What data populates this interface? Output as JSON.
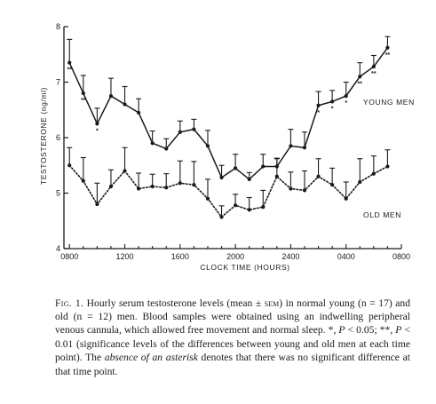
{
  "chart_data": {
    "type": "line",
    "title": "",
    "xlabel": "CLOCK TIME (HOURS)",
    "ylabel": "TESTOSTERONE (ng/ml)",
    "ylim": [
      4,
      8
    ],
    "yticks": [
      4,
      5,
      6,
      7,
      8
    ],
    "xtick_labels": [
      "0800",
      "1200",
      "1600",
      "2000",
      "2400",
      "0400",
      "0800"
    ],
    "grid": false,
    "x_hours": [
      8,
      9,
      10,
      11,
      12,
      13,
      14,
      15,
      16,
      17,
      18,
      19,
      20,
      21,
      22,
      23,
      24,
      25,
      26,
      27,
      28,
      29,
      30,
      31
    ],
    "series": [
      {
        "name": "YOUNG MEN",
        "line_style": "solid",
        "values": [
          7.35,
          6.8,
          6.25,
          6.75,
          6.6,
          6.45,
          5.9,
          5.8,
          6.1,
          6.15,
          5.85,
          5.28,
          5.45,
          5.25,
          5.48,
          5.48,
          5.85,
          5.82,
          6.58,
          6.65,
          6.75,
          7.1,
          7.28,
          7.62
        ],
        "sem": [
          0.42,
          0.32,
          0.28,
          0.32,
          0.32,
          0.25,
          0.22,
          0.18,
          0.2,
          0.18,
          0.28,
          0.22,
          0.25,
          0.12,
          0.22,
          0.15,
          0.3,
          0.28,
          0.25,
          0.2,
          0.25,
          0.25,
          0.2,
          0.2
        ],
        "significance": [
          "**",
          "**",
          "*",
          "",
          "",
          "",
          "",
          "",
          "",
          "",
          "",
          "",
          "",
          "",
          "",
          "",
          "",
          "",
          "*",
          "*",
          "*",
          "**",
          "**",
          "**"
        ]
      },
      {
        "name": "OLD MEN",
        "line_style": "dotted",
        "values": [
          5.5,
          5.22,
          4.8,
          5.12,
          5.4,
          5.08,
          5.12,
          5.1,
          5.18,
          5.15,
          4.9,
          4.57,
          4.78,
          4.7,
          4.75,
          5.3,
          5.08,
          5.05,
          5.3,
          5.15,
          4.9,
          5.2,
          5.35,
          5.48
        ],
        "sem": [
          0.32,
          0.42,
          0.38,
          0.3,
          0.42,
          0.28,
          0.22,
          0.25,
          0.4,
          0.42,
          0.35,
          0.2,
          0.2,
          0.22,
          0.3,
          0.32,
          0.3,
          0.35,
          0.32,
          0.3,
          0.3,
          0.42,
          0.32,
          0.3
        ]
      }
    ]
  },
  "caption": {
    "fig_label": "Fig. 1.",
    "part1": " Hourly serum testosterone levels (mean ± ",
    "sem_text": "sem",
    "part2": ") in normal young (n = 17) and old (n = 12) men. Blood samples were obtained using an indwelling peripheral venous cannula, which allowed free movement and normal sleep. *, ",
    "p1": "P",
    "part3": " < 0.05; **, ",
    "p2": "P",
    "part4": " < 0.01 (significance levels of the differences between young and old men at each time point). The ",
    "italic_phrase": "absence of an asterisk",
    "part5": " denotes that there was no significant difference at that time point."
  }
}
